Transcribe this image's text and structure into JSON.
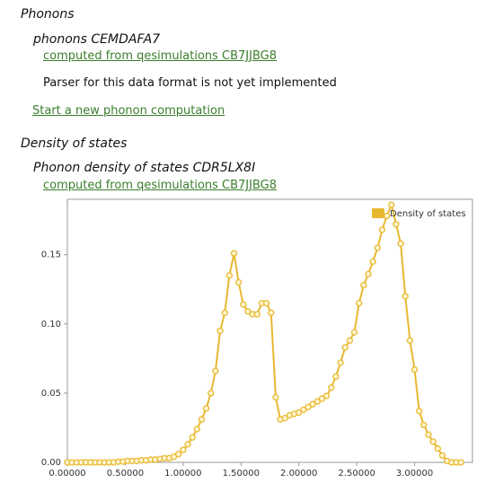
{
  "phonons": {
    "heading": "Phonons",
    "item_title": "phonons CEMDAFA7",
    "computed_link": "computed from qesimulations CB7JJBG8",
    "message": "Parser for this data format is not yet implemented",
    "new_link": "Start a new phonon computation"
  },
  "density": {
    "heading": "Density of states",
    "item_title": "Phonon density of states CDR5LX8I",
    "computed_link": "computed from qesimulations CB7JJBG8"
  },
  "chart_data": {
    "type": "line",
    "x": [
      0,
      0.04,
      0.08,
      0.12,
      0.16,
      0.2,
      0.24,
      0.28,
      0.32,
      0.36,
      0.4,
      0.44,
      0.48,
      0.52,
      0.56,
      0.6,
      0.64,
      0.68,
      0.72,
      0.76,
      0.8,
      0.84,
      0.88,
      0.92,
      0.96,
      1.0,
      1.04,
      1.08,
      1.12,
      1.16,
      1.2,
      1.24,
      1.28,
      1.32,
      1.36,
      1.4,
      1.44,
      1.48,
      1.52,
      1.56,
      1.6,
      1.64,
      1.68,
      1.72,
      1.76,
      1.8,
      1.84,
      1.88,
      1.92,
      1.96,
      2.0,
      2.04,
      2.08,
      2.12,
      2.16,
      2.2,
      2.24,
      2.28,
      2.32,
      2.36,
      2.4,
      2.44,
      2.48,
      2.52,
      2.56,
      2.6,
      2.64,
      2.68,
      2.72,
      2.76,
      2.8,
      2.84,
      2.88,
      2.92,
      2.96,
      3.0,
      3.04,
      3.08,
      3.12,
      3.16,
      3.2,
      3.24,
      3.28,
      3.32,
      3.36,
      3.4
    ],
    "series": [
      {
        "name": "Density of states",
        "color": "#e8b832",
        "values": [
          0,
          0,
          0,
          0,
          0,
          0,
          0,
          0,
          0,
          0,
          0,
          0.0005,
          0.0005,
          0.001,
          0.001,
          0.001,
          0.0015,
          0.0015,
          0.002,
          0.002,
          0.0025,
          0.003,
          0.003,
          0.004,
          0.006,
          0.009,
          0.013,
          0.018,
          0.024,
          0.031,
          0.039,
          0.05,
          0.066,
          0.095,
          0.108,
          0.135,
          0.151,
          0.13,
          0.114,
          0.109,
          0.107,
          0.107,
          0.115,
          0.115,
          0.108,
          0.047,
          0.031,
          0.032,
          0.034,
          0.035,
          0.036,
          0.038,
          0.04,
          0.042,
          0.044,
          0.046,
          0.048,
          0.054,
          0.062,
          0.072,
          0.083,
          0.088,
          0.094,
          0.115,
          0.128,
          0.136,
          0.145,
          0.155,
          0.168,
          0.178,
          0.186,
          0.172,
          0.158,
          0.12,
          0.088,
          0.067,
          0.037,
          0.027,
          0.02,
          0.015,
          0.01,
          0.005,
          0.001,
          0,
          0,
          0
        ]
      }
    ],
    "xlim": [
      0,
      3.5
    ],
    "xticks": [
      {
        "value": 0,
        "label": "0.00000"
      },
      {
        "value": 0.5,
        "label": "0.50000"
      },
      {
        "value": 1,
        "label": "1.00000"
      },
      {
        "value": 1.5,
        "label": "1.50000"
      },
      {
        "value": 2,
        "label": "2.00000"
      },
      {
        "value": 2.5,
        "label": "2.50000"
      },
      {
        "value": 3,
        "label": "3.00000"
      }
    ],
    "ylim": [
      0,
      0.19
    ],
    "yticks": [
      {
        "value": 0,
        "label": "0.00"
      },
      0.05,
      {
        "value": 0.1,
        "label": "0.10"
      },
      0.15
    ],
    "legend": "top-right",
    "grid": false
  }
}
